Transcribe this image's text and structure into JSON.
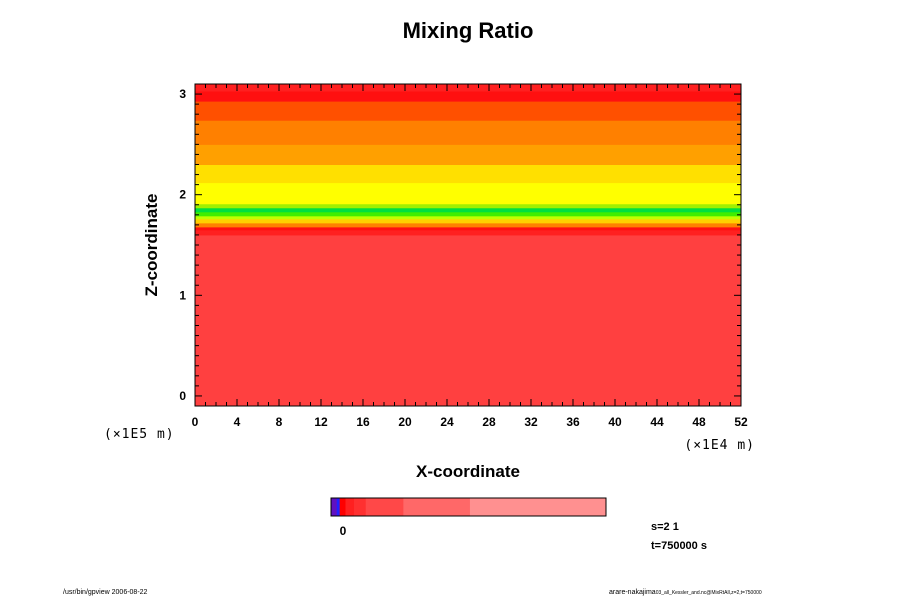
{
  "chart_data": {
    "type": "heatmap",
    "title": "Mixing Ratio",
    "xlabel": "X-coordinate",
    "ylabel": "Z-coordinate",
    "x_ticks": [
      "0",
      "4",
      "8",
      "12",
      "16",
      "20",
      "24",
      "28",
      "32",
      "36",
      "40",
      "44",
      "48",
      "52"
    ],
    "x_range": [
      0,
      52
    ],
    "x_scale_note": "(×1E4 m)",
    "y_ticks": [
      "0",
      "1",
      "2",
      "3"
    ],
    "y_range": [
      -0.1,
      3.1
    ],
    "y_scale_note": "(×1E5 m)",
    "layers_by_z": [
      {
        "z_from": -0.1,
        "z_to": 1.6,
        "color": "#ff4040",
        "level": "background"
      },
      {
        "z_from": 1.6,
        "z_to": 1.65,
        "color": "#ff2020"
      },
      {
        "z_from": 1.65,
        "z_to": 1.68,
        "color": "#ff1010"
      },
      {
        "z_from": 1.68,
        "z_to": 1.72,
        "color": "#ff8000"
      },
      {
        "z_from": 1.72,
        "z_to": 1.76,
        "color": "#ffd000"
      },
      {
        "z_from": 1.76,
        "z_to": 1.79,
        "color": "#c0ff00"
      },
      {
        "z_from": 1.79,
        "z_to": 1.83,
        "color": "#40ee00"
      },
      {
        "z_from": 1.83,
        "z_to": 1.87,
        "color": "#00e040"
      },
      {
        "z_from": 1.87,
        "z_to": 1.91,
        "color": "#a0f000"
      },
      {
        "z_from": 1.91,
        "z_to": 2.12,
        "color": "#ffff00"
      },
      {
        "z_from": 2.12,
        "z_to": 2.3,
        "color": "#ffe000"
      },
      {
        "z_from": 2.3,
        "z_to": 2.5,
        "color": "#ffa000"
      },
      {
        "z_from": 2.5,
        "z_to": 2.74,
        "color": "#ff8000"
      },
      {
        "z_from": 2.74,
        "z_to": 2.93,
        "color": "#ff5000"
      },
      {
        "z_from": 2.93,
        "z_to": 3.03,
        "color": "#ff1010"
      },
      {
        "z_from": 3.03,
        "z_to": 3.1,
        "color": "#ff2020"
      }
    ],
    "colorbar": {
      "tick_label": "0",
      "segments": [
        {
          "color": "#6010c0",
          "weight": 2
        },
        {
          "color": "#2020ff",
          "weight": 1
        },
        {
          "color": "#ff0000",
          "weight": 2
        },
        {
          "color": "#ff2020",
          "weight": 3
        },
        {
          "color": "#ff3030",
          "weight": 4
        },
        {
          "color": "#ff4848",
          "weight": 13
        },
        {
          "color": "#ff6868",
          "weight": 23
        },
        {
          "color": "#ff9090",
          "weight": 47
        }
      ]
    },
    "grid": false
  },
  "annotations": {
    "s_label": "s=2 1",
    "t_label": "t=750000 s"
  },
  "footer": {
    "left": "/usr/bin/gpview 2006-08-22",
    "right_main": "arare-nakajima",
    "right_small": "03_all_Kessler_and.nc@MixRtAll,z=2,t=750000"
  }
}
